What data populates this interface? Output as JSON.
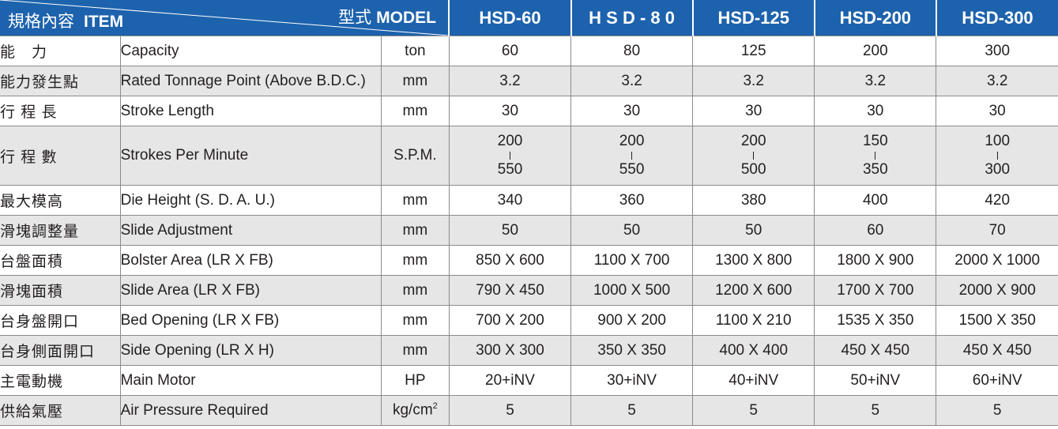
{
  "header": {
    "item_zh": "規格內容",
    "item_en": "ITEM",
    "model_zh": "型式",
    "model_en": "MODEL",
    "models": [
      "HSD-60",
      "H S D - 8 0",
      "HSD-125",
      "HSD-200",
      "HSD-300"
    ]
  },
  "rows": [
    {
      "zh": "能　力",
      "en": "Capacity",
      "unit": "ton",
      "values": [
        "60",
        "80",
        "125",
        "200",
        "300"
      ]
    },
    {
      "zh": "能力發生點",
      "en": "Rated Tonnage Point (Above B.D.C.)",
      "unit": "mm",
      "values": [
        "3.2",
        "3.2",
        "3.2",
        "3.2",
        "3.2"
      ]
    },
    {
      "zh": "行 程 長",
      "en": "Stroke Length",
      "unit": "mm",
      "values": [
        "30",
        "30",
        "30",
        "30",
        "30"
      ]
    },
    {
      "zh": "行 程 數",
      "en": "Strokes Per Minute",
      "unit": "S.P.M.",
      "ranges": [
        [
          "200",
          "550"
        ],
        [
          "200",
          "550"
        ],
        [
          "200",
          "500"
        ],
        [
          "150",
          "350"
        ],
        [
          "100",
          "300"
        ]
      ]
    },
    {
      "zh": "最大模高",
      "en": "Die Height (S. D. A. U.)",
      "unit": "mm",
      "values": [
        "340",
        "360",
        "380",
        "400",
        "420"
      ]
    },
    {
      "zh": "滑塊調整量",
      "en": "Slide Adjustment",
      "unit": "mm",
      "values": [
        "50",
        "50",
        "50",
        "60",
        "70"
      ]
    },
    {
      "zh": "台盤面積",
      "en": "Bolster Area  (LR X FB)",
      "unit": "mm",
      "values": [
        "850 X 600",
        "1100 X 700",
        "1300 X 800",
        "1800 X 900",
        "2000 X 1000"
      ]
    },
    {
      "zh": "滑塊面積",
      "en": "Slide Area  (LR X FB)",
      "unit": "mm",
      "values": [
        "790 X 450",
        "1000 X 500",
        "1200 X 600",
        "1700 X 700",
        "2000 X 900"
      ]
    },
    {
      "zh": "台身盤開口",
      "en": "Bed Opening (LR X FB)",
      "unit": "mm",
      "values": [
        "700 X 200",
        "900 X 200",
        "1100 X 210",
        "1535 X 350",
        "1500 X 350"
      ]
    },
    {
      "zh": "台身側面開口",
      "en": "Side Opening (LR X H)",
      "unit": "mm",
      "values": [
        "300 X 300",
        "350 X 350",
        "400 X 400",
        "450 X 450",
        "450 X 450"
      ]
    },
    {
      "zh": "主電動機",
      "en": "Main Motor",
      "unit": "HP",
      "values": [
        "20+iNV",
        "30+iNV",
        "40+iNV",
        "50+iNV",
        "60+iNV"
      ]
    },
    {
      "zh": "供給氣壓",
      "en": "Air Pressure Required",
      "unit": "kg/cm",
      "unit_sup": "2",
      "values": [
        "5",
        "5",
        "5",
        "5",
        "5"
      ]
    }
  ]
}
